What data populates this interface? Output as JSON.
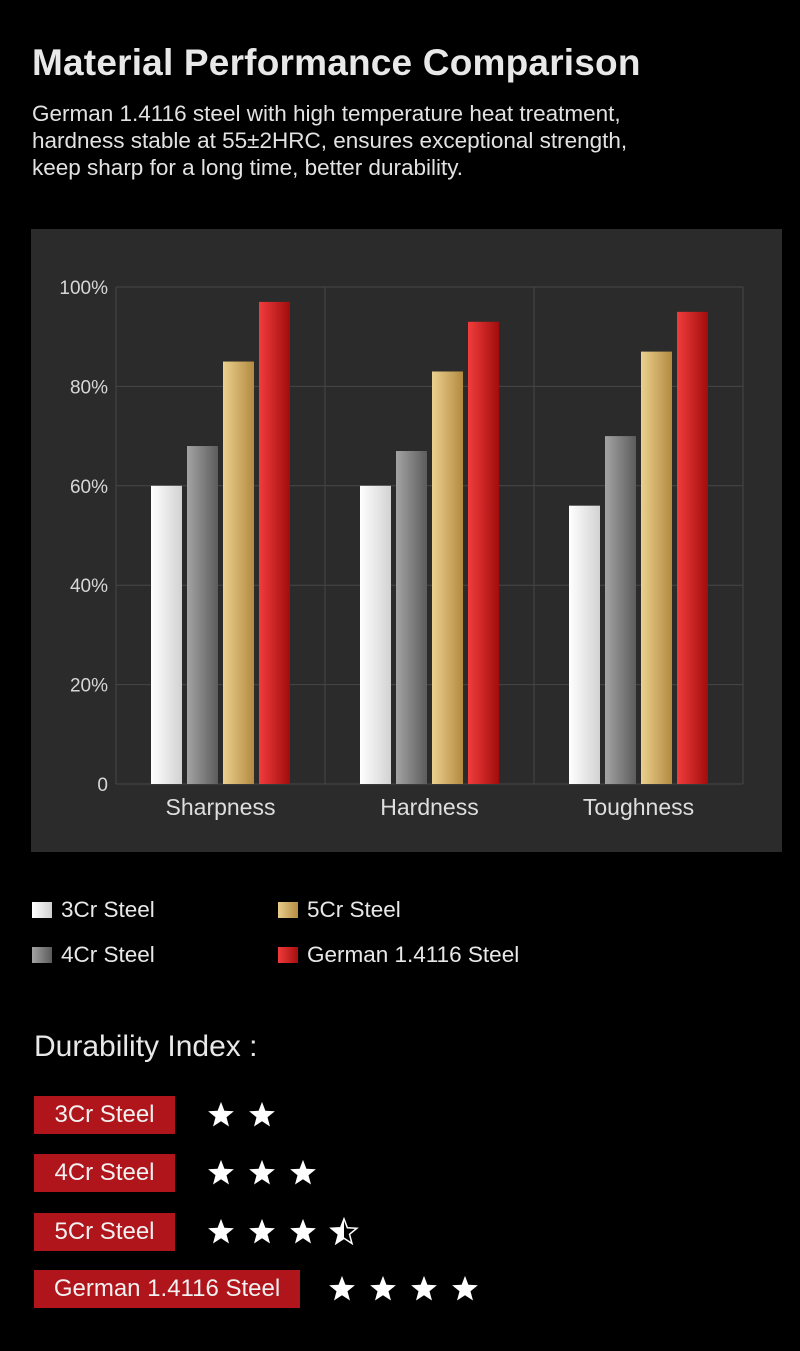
{
  "header": {
    "title": "Material Performance Comparison",
    "subtitle_lines": [
      "German 1.4116 steel with high temperature heat treatment,",
      "hardness stable at 55±2HRC, ensures exceptional strength,",
      "keep sharp for a long time, better durability."
    ]
  },
  "chart_data": {
    "type": "bar",
    "title": "",
    "xlabel": "",
    "ylabel": "",
    "ylim": [
      0,
      100
    ],
    "yticks": [
      0,
      20,
      40,
      60,
      80,
      100
    ],
    "ytick_labels": [
      "0",
      "20%",
      "40%",
      "60%",
      "80%",
      "100%"
    ],
    "grid": true,
    "categories": [
      "Sharpness",
      "Hardness",
      "Toughness"
    ],
    "series": [
      {
        "name": "3Cr Steel",
        "color": "#ececec",
        "values": [
          60,
          60,
          56
        ]
      },
      {
        "name": "4Cr Steel",
        "color": "#7c7c7c",
        "values": [
          68,
          67,
          70
        ]
      },
      {
        "name": "5Cr Steel",
        "color": "#d6ae62",
        "values": [
          85,
          83,
          87
        ]
      },
      {
        "name": "German 1.4116 Steel",
        "color": "#d81c1c",
        "values": [
          97,
          93,
          95
        ]
      }
    ]
  },
  "legend": [
    {
      "label": "3Cr Steel",
      "color": "#ececec"
    },
    {
      "label": "5Cr Steel",
      "color": "#d6ae62"
    },
    {
      "label": "4Cr Steel",
      "color": "#7c7c7c"
    },
    {
      "label": "German 1.4116 Steel",
      "color": "#d81c1c"
    }
  ],
  "durability": {
    "title": "Durability Index :",
    "rows": [
      {
        "label": "3Cr Steel",
        "stars": 2
      },
      {
        "label": "4Cr Steel",
        "stars": 3
      },
      {
        "label": "5Cr Steel",
        "stars": 3.5
      },
      {
        "label": "German 1.4116 Steel",
        "stars": 4
      }
    ]
  },
  "colors": {
    "background": "#000000",
    "panel": "#2b2b2b",
    "accent_red": "#b0151b"
  }
}
